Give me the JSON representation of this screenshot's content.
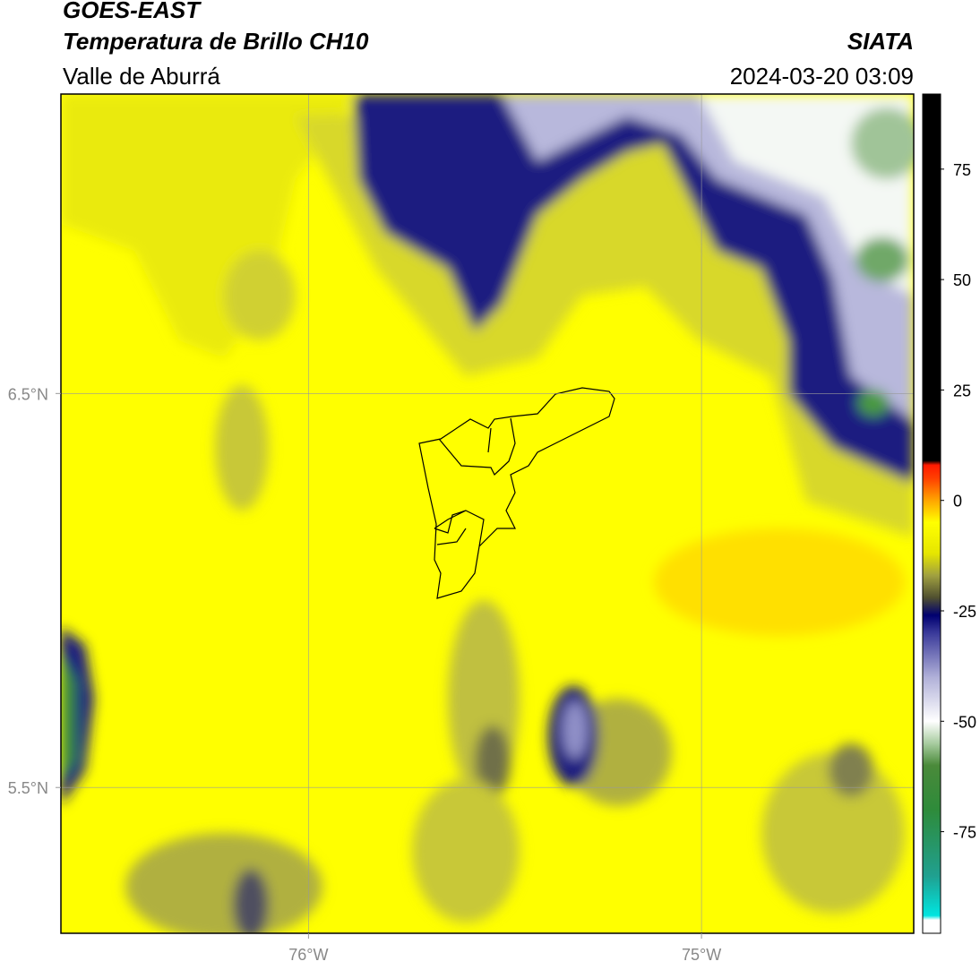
{
  "header": {
    "title": "GOES-EAST",
    "subtitle": "Temperatura de Brillo CH10",
    "region": "Valle de Aburrá",
    "source": "SIATA",
    "datetime": "2024-03-20 03:09"
  },
  "map": {
    "xlim": [
      -76.63,
      -74.46
    ],
    "ylim": [
      5.13,
      7.26
    ],
    "xticks": [
      {
        "value": -76,
        "label": "76°W"
      },
      {
        "value": -75,
        "label": "75°W"
      }
    ],
    "yticks": [
      {
        "value": 6.5,
        "label": "6.5°N"
      },
      {
        "value": 5.5,
        "label": "5.5°N"
      }
    ],
    "grid": true
  },
  "colorbar": {
    "lim": [
      -98,
      92
    ],
    "ticks": [
      -75,
      -50,
      -25,
      0,
      25,
      50,
      75
    ],
    "stops": [
      [
        -98,
        "#ffffff"
      ],
      [
        -95,
        "#ffffff"
      ],
      [
        -94,
        "#00e5e0"
      ],
      [
        -85,
        "#20a090"
      ],
      [
        -70,
        "#2e8b3a"
      ],
      [
        -60,
        "#4a8a3a"
      ],
      [
        -55,
        "#a8cca0"
      ],
      [
        -50,
        "#ffffff"
      ],
      [
        -40,
        "#b0b0d8"
      ],
      [
        -30,
        "#3a3a9a"
      ],
      [
        -26,
        "#000070"
      ],
      [
        -22,
        "#505030"
      ],
      [
        -17,
        "#a0a040"
      ],
      [
        -12,
        "#e6e600"
      ],
      [
        -5,
        "#ffff00"
      ],
      [
        0,
        "#ffa500"
      ],
      [
        5,
        "#ff4000"
      ],
      [
        8,
        "#ff1a00"
      ],
      [
        9,
        "#000000"
      ],
      [
        92,
        "#000000"
      ]
    ]
  }
}
